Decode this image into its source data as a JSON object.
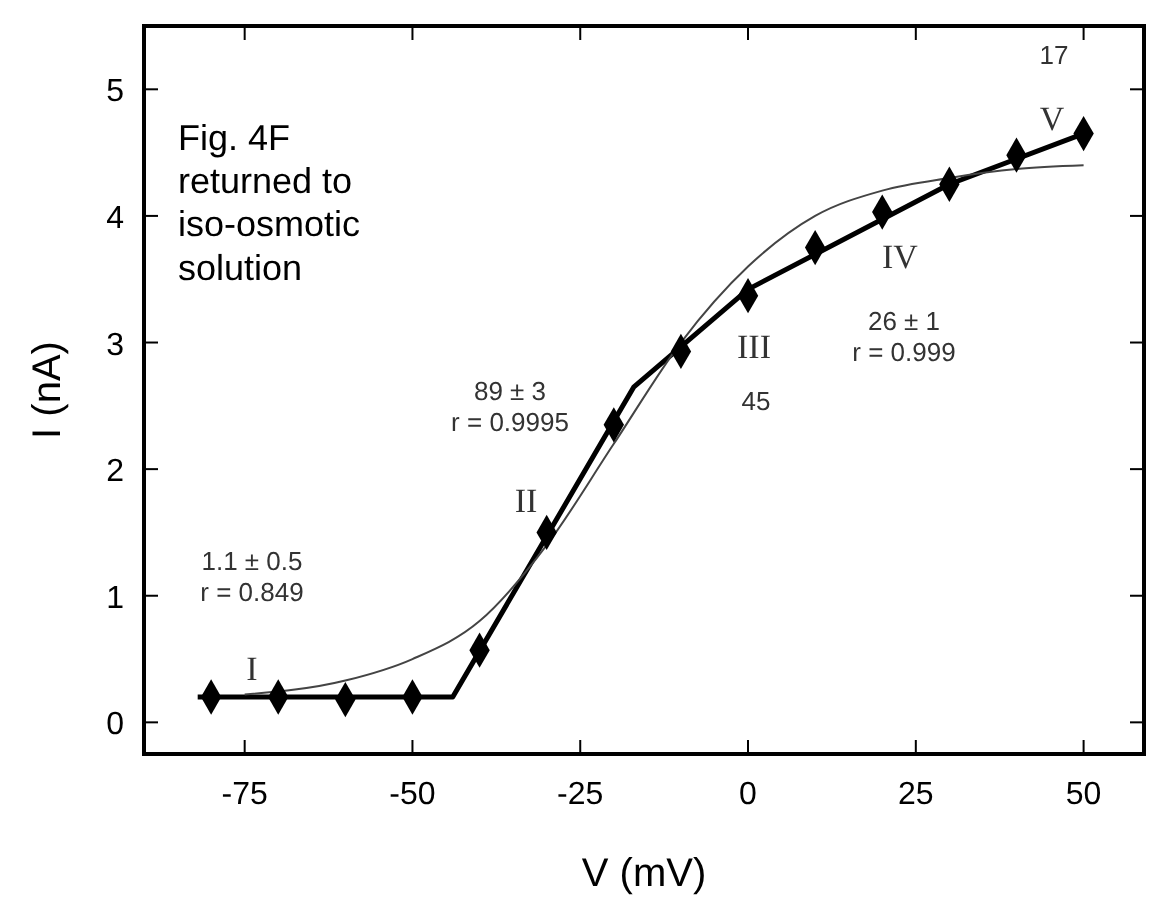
{
  "chart_data": {
    "type": "line",
    "xlabel": "V (mV)",
    "ylabel": "I (nA)",
    "xlim": [
      -90,
      59
    ],
    "ylim": [
      -0.25,
      5.5
    ],
    "xticks": [
      -75,
      -50,
      -25,
      0,
      25,
      50
    ],
    "yticks": [
      0,
      1,
      2,
      3,
      4,
      5
    ],
    "grid": false,
    "series": [
      {
        "color": "#000000",
        "marker": "none",
        "line_style": "solid",
        "x": [
          -82,
          -44,
          -17,
          0,
          30,
          50
        ],
        "values": [
          0.2,
          0.2,
          2.65,
          3.42,
          4.25,
          4.65
        ]
      },
      {
        "color": "#444444",
        "marker": "none",
        "line_style": "solid",
        "x": [
          -75,
          -60,
          -50,
          -40,
          -30,
          -20,
          -10,
          0,
          10,
          20,
          30,
          40,
          50
        ],
        "values": [
          0.22,
          0.33,
          0.5,
          0.8,
          1.4,
          2.2,
          3.0,
          3.6,
          4.0,
          4.2,
          4.3,
          4.37,
          4.4
        ]
      },
      {
        "type": "scatter",
        "color": "#000000",
        "marker": "diamond",
        "x": [
          -80,
          -70,
          -60,
          -50,
          -40,
          -30,
          -20,
          -10,
          0,
          10,
          20,
          30,
          40,
          50
        ],
        "values": [
          0.2,
          0.2,
          0.18,
          0.2,
          0.57,
          1.5,
          2.35,
          2.93,
          3.37,
          3.75,
          4.03,
          4.25,
          4.48,
          4.65
        ]
      }
    ],
    "annotations": [
      "Fig. 4F\nreturned to\niso-osmotic\nsolution",
      "I",
      "1.1 ± 0.5\nr = 0.849",
      "II",
      "89 ± 3\nr = 0.9995",
      "III",
      "45",
      "IV",
      "26 ± 1\nr = 0.999",
      "V",
      "17"
    ]
  }
}
